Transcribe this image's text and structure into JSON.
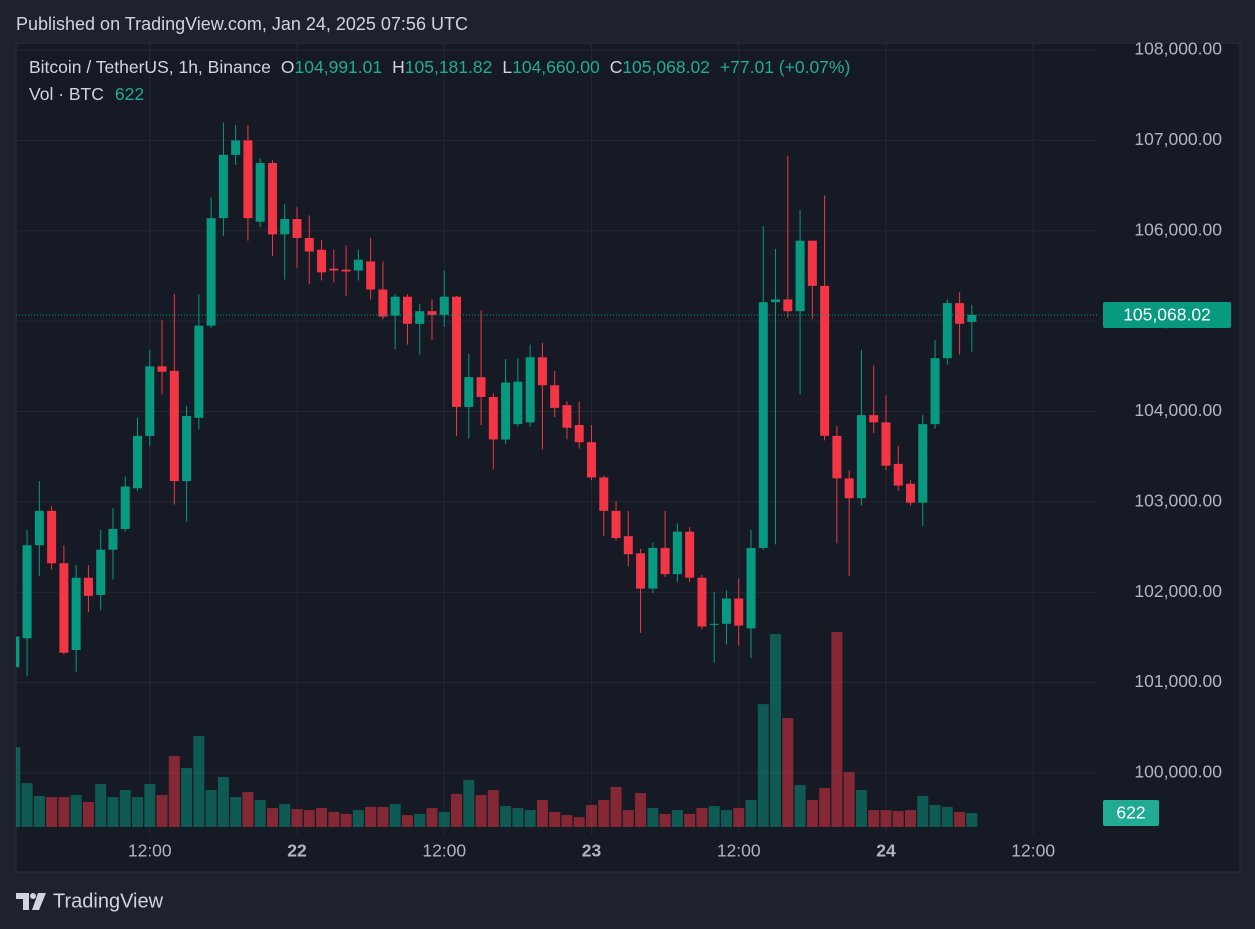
{
  "header": {
    "published": "Published on TradingView.com, Jan 24, 2025 07:56 UTC"
  },
  "legend": {
    "symbol": "Bitcoin / TetherUS, 1h, Binance",
    "o_label": "O",
    "open": "104,991.01",
    "h_label": "H",
    "high": "105,181.82",
    "l_label": "L",
    "low": "104,660.00",
    "c_label": "C",
    "close": "105,068.02",
    "change": "+77.01 (+0.07%)",
    "volume_label": "Vol · BTC",
    "volume": "622"
  },
  "chart_data": {
    "type": "candlestick",
    "categories": [
      null,
      null,
      null,
      null,
      null,
      null,
      null,
      null,
      null,
      null,
      null,
      "12:00",
      null,
      null,
      null,
      null,
      null,
      null,
      null,
      null,
      null,
      null,
      null,
      "22",
      null,
      null,
      null,
      null,
      null,
      null,
      null,
      null,
      null,
      null,
      null,
      "12:00",
      null,
      null,
      null,
      null,
      null,
      null,
      null,
      null,
      null,
      null,
      null,
      "23",
      null,
      null,
      null,
      null,
      null,
      null,
      null,
      null,
      null,
      null,
      null,
      "12:00",
      null,
      null,
      null,
      null,
      null,
      null,
      null,
      null,
      null,
      null,
      null,
      "24",
      null,
      null,
      null,
      null,
      null,
      null,
      null,
      null,
      null,
      null,
      null,
      "12:00"
    ],
    "open": [
      101170,
      101490,
      102520,
      102900,
      102320,
      101360,
      102160,
      101970,
      102470,
      102700,
      103150,
      103730,
      104500,
      104450,
      103230,
      103930,
      104950,
      106140,
      106840,
      107000,
      106100,
      106750,
      105960,
      106130,
      105920,
      105790,
      105580,
      105570,
      105560,
      105660,
      105350,
      105060,
      105270,
      104970,
      105110,
      105070,
      105270,
      104050,
      104380,
      104160,
      103690,
      103860,
      103880,
      104600,
      104290,
      104070,
      103850,
      103660,
      103270,
      102900,
      102620,
      102430,
      102040,
      102490,
      102200,
      102670,
      102160,
      101640,
      101650,
      101930,
      101600,
      102490,
      105210,
      105240,
      105110,
      105890,
      105390,
      103730,
      103260,
      103040,
      103960,
      103880,
      103420,
      103200,
      102990,
      103860,
      104590,
      105200,
      104991.01,
      null,
      null,
      null,
      null,
      null
    ],
    "high": [
      101620,
      102690,
      103230,
      102950,
      102520,
      102300,
      102300,
      102690,
      102930,
      103280,
      103930,
      104680,
      105010,
      105300,
      104060,
      105300,
      106370,
      107200,
      107170,
      107170,
      106800,
      106780,
      106300,
      106260,
      106170,
      105900,
      105790,
      105840,
      105790,
      105920,
      105660,
      105300,
      105300,
      105190,
      105240,
      105560,
      105280,
      104640,
      105120,
      104200,
      104580,
      104590,
      104740,
      104760,
      104450,
      104110,
      104110,
      103850,
      103290,
      103010,
      102900,
      102480,
      102550,
      102900,
      102760,
      102720,
      102190,
      102000,
      102020,
      102150,
      102690,
      106050,
      105800,
      106830,
      106230,
      105890,
      106390,
      103840,
      103350,
      104680,
      104510,
      104180,
      103620,
      103240,
      103960,
      104790,
      105240,
      105320,
      105181.82,
      null,
      null,
      null,
      null,
      null
    ],
    "low": [
      100980,
      101070,
      102180,
      102250,
      101310,
      101120,
      101780,
      101800,
      102140,
      102670,
      103120,
      103620,
      104190,
      102970,
      102780,
      103800,
      104920,
      105940,
      106730,
      105890,
      106040,
      105720,
      105460,
      105590,
      105410,
      105450,
      105430,
      105280,
      105450,
      105240,
      105020,
      104690,
      104740,
      104630,
      104790,
      104940,
      103730,
      103700,
      103850,
      103360,
      103640,
      103830,
      103830,
      103580,
      103940,
      103690,
      103590,
      103240,
      102620,
      102570,
      102290,
      101550,
      101990,
      102170,
      102110,
      102110,
      101590,
      101220,
      101420,
      101410,
      101270,
      102470,
      102530,
      105040,
      104190,
      105020,
      103680,
      102540,
      102180,
      102960,
      103760,
      103350,
      103120,
      102960,
      102730,
      103810,
      104520,
      104630,
      104660,
      null,
      null,
      null,
      null,
      null
    ],
    "close": [
      101510,
      102520,
      102900,
      102320,
      101330,
      102160,
      101960,
      102470,
      102700,
      103170,
      103730,
      104500,
      104440,
      103230,
      103950,
      104950,
      106140,
      106840,
      107000,
      106140,
      106750,
      105960,
      106130,
      105920,
      105770,
      105540,
      105560,
      105550,
      105680,
      105350,
      105050,
      105270,
      104970,
      105110,
      105070,
      105270,
      104050,
      104380,
      104160,
      103690,
      104320,
      104330,
      104600,
      104290,
      104040,
      103820,
      103660,
      103270,
      102900,
      102600,
      102420,
      102040,
      102490,
      102200,
      102670,
      102160,
      101620,
      101650,
      101930,
      101630,
      102490,
      105210,
      105240,
      105110,
      105890,
      105390,
      103730,
      103260,
      103040,
      103960,
      103880,
      103400,
      103180,
      102990,
      103860,
      104590,
      105200,
      104970,
      105068.02,
      null,
      null,
      null,
      null,
      null
    ],
    "volume": [
      3550,
      1950,
      1380,
      1330,
      1330,
      1420,
      1110,
      1910,
      1330,
      1640,
      1330,
      1910,
      1420,
      3150,
      2620,
      4040,
      1640,
      2220,
      1330,
      1550,
      1200,
      840,
      1020,
      800,
      750,
      840,
      670,
      580,
      750,
      890,
      890,
      1020,
      530,
      580,
      840,
      670,
      1470,
      2090,
      1420,
      1640,
      930,
      840,
      750,
      1200,
      670,
      530,
      440,
      980,
      1200,
      1780,
      750,
      1510,
      840,
      580,
      750,
      580,
      840,
      930,
      750,
      840,
      1200,
      5460,
      8570,
      4840,
      1860,
      1200,
      1730,
      8660,
      2440,
      1640,
      750,
      750,
      710,
      750,
      1380,
      980,
      890,
      670,
      622,
      null,
      null,
      null,
      null,
      null
    ],
    "up_color": "#089981",
    "down_color": "#f23645",
    "ylim": [
      99313,
      108078
    ],
    "yticks": [
      {
        "value": 100000,
        "label": "100,000.00"
      },
      {
        "value": 101000,
        "label": "101,000.00"
      },
      {
        "value": 102000,
        "label": "102,000.00"
      },
      {
        "value": 103000,
        "label": "103,000.00"
      },
      {
        "value": 104000,
        "label": "104,000.00"
      },
      {
        "value": 105000,
        "label": "105,000.00"
      },
      {
        "value": 106000,
        "label": "106,000.00"
      },
      {
        "value": 107000,
        "label": "107,000.00"
      },
      {
        "value": 108000,
        "label": "108,000.00"
      }
    ],
    "volume_lim": [
      0,
      12440
    ],
    "grid": true,
    "last_price": {
      "value": 105068.02,
      "label": "105,068.02"
    },
    "last_volume": {
      "value": 622,
      "label": "622"
    }
  },
  "footer": {
    "brand": "TradingView"
  }
}
